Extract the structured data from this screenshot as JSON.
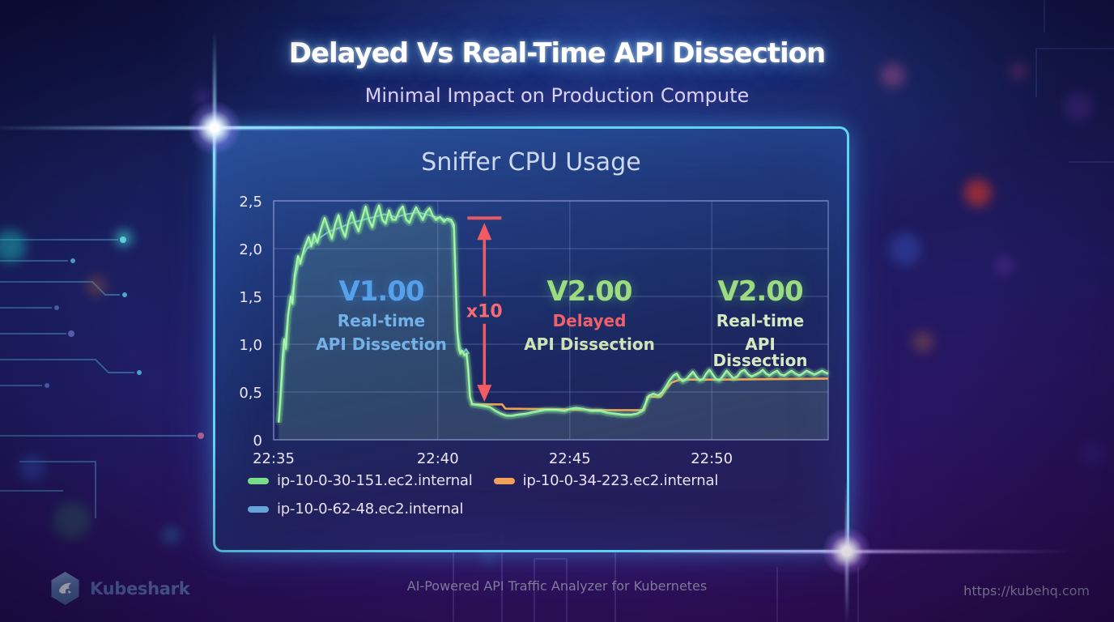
{
  "header": {
    "title": "Delayed Vs Real-Time API Dissection",
    "subtitle": "Minimal Impact on Production Compute"
  },
  "chart_data": {
    "type": "line",
    "title": "Sniffer CPU Usage",
    "ylim": [
      0,
      2.5
    ],
    "grid": true,
    "legend_position": "bottom-left",
    "y_ticks": [
      {
        "label": "0",
        "value": 0
      },
      {
        "label": "0,5",
        "value": 0.5
      },
      {
        "label": "1,0",
        "value": 1.0
      },
      {
        "label": "1,5",
        "value": 1.5
      },
      {
        "label": "2,0",
        "value": 2.0
      },
      {
        "label": "2,5",
        "value": 2.5
      }
    ],
    "x_ticks": [
      {
        "label": "22:35",
        "f": 0.0
      },
      {
        "label": "22:40",
        "f": 0.296
      },
      {
        "label": "22:45",
        "f": 0.534
      },
      {
        "label": "22:50",
        "f": 0.79
      }
    ],
    "series": [
      {
        "name": "ip-10-0-30-151.ec2.internal",
        "color": "#84e88e",
        "fill": "rgba(150,230,170,0.16)",
        "points": [
          [
            0.009,
            0.18
          ],
          [
            0.012,
            0.4
          ],
          [
            0.016,
            0.85
          ],
          [
            0.019,
            1.05
          ],
          [
            0.022,
            0.95
          ],
          [
            0.026,
            1.3
          ],
          [
            0.031,
            1.5
          ],
          [
            0.034,
            1.42
          ],
          [
            0.038,
            1.72
          ],
          [
            0.044,
            1.92
          ],
          [
            0.048,
            1.84
          ],
          [
            0.055,
            2.0
          ],
          [
            0.063,
            2.12
          ],
          [
            0.068,
            2.02
          ],
          [
            0.073,
            2.15
          ],
          [
            0.079,
            2.06
          ],
          [
            0.085,
            2.2
          ],
          [
            0.092,
            2.32
          ],
          [
            0.099,
            2.2
          ],
          [
            0.105,
            2.1
          ],
          [
            0.111,
            2.25
          ],
          [
            0.117,
            2.35
          ],
          [
            0.123,
            2.2
          ],
          [
            0.129,
            2.12
          ],
          [
            0.135,
            2.28
          ],
          [
            0.141,
            2.38
          ],
          [
            0.147,
            2.26
          ],
          [
            0.153,
            2.18
          ],
          [
            0.16,
            2.32
          ],
          [
            0.166,
            2.44
          ],
          [
            0.172,
            2.3
          ],
          [
            0.178,
            2.22
          ],
          [
            0.184,
            2.36
          ],
          [
            0.19,
            2.45
          ],
          [
            0.196,
            2.3
          ],
          [
            0.202,
            2.26
          ],
          [
            0.208,
            2.4
          ],
          [
            0.214,
            2.3
          ],
          [
            0.22,
            2.3
          ],
          [
            0.227,
            2.4
          ],
          [
            0.233,
            2.44
          ],
          [
            0.239,
            2.3
          ],
          [
            0.245,
            2.27
          ],
          [
            0.251,
            2.36
          ],
          [
            0.257,
            2.43
          ],
          [
            0.263,
            2.36
          ],
          [
            0.269,
            2.3
          ],
          [
            0.275,
            2.38
          ],
          [
            0.281,
            2.42
          ],
          [
            0.287,
            2.34
          ],
          [
            0.293,
            2.3
          ],
          [
            0.3,
            2.33
          ],
          [
            0.307,
            2.28
          ],
          [
            0.313,
            2.31
          ],
          [
            0.32,
            2.3
          ],
          [
            0.325,
            2.25
          ],
          [
            0.328,
            1.7
          ],
          [
            0.331,
            1.15
          ],
          [
            0.334,
            0.95
          ],
          [
            0.337,
            0.9
          ],
          [
            0.34,
            0.93
          ],
          [
            0.344,
            0.88
          ],
          [
            0.348,
            0.9
          ],
          [
            0.351,
            0.72
          ],
          [
            0.354,
            0.45
          ],
          [
            0.358,
            0.37
          ],
          [
            0.37,
            0.36
          ],
          [
            0.39,
            0.34
          ],
          [
            0.4,
            0.3
          ],
          [
            0.41,
            0.27
          ],
          [
            0.42,
            0.25
          ],
          [
            0.43,
            0.25
          ],
          [
            0.44,
            0.26
          ],
          [
            0.455,
            0.27
          ],
          [
            0.47,
            0.29
          ],
          [
            0.49,
            0.31
          ],
          [
            0.51,
            0.31
          ],
          [
            0.525,
            0.3
          ],
          [
            0.535,
            0.32
          ],
          [
            0.545,
            0.33
          ],
          [
            0.558,
            0.32
          ],
          [
            0.572,
            0.3
          ],
          [
            0.59,
            0.3
          ],
          [
            0.602,
            0.28
          ],
          [
            0.615,
            0.27
          ],
          [
            0.63,
            0.26
          ],
          [
            0.645,
            0.26
          ],
          [
            0.655,
            0.27
          ],
          [
            0.665,
            0.3
          ],
          [
            0.671,
            0.38
          ],
          [
            0.677,
            0.46
          ],
          [
            0.685,
            0.48
          ],
          [
            0.693,
            0.46
          ],
          [
            0.7,
            0.49
          ],
          [
            0.707,
            0.55
          ],
          [
            0.714,
            0.62
          ],
          [
            0.721,
            0.67
          ],
          [
            0.727,
            0.69
          ],
          [
            0.732,
            0.64
          ],
          [
            0.738,
            0.61
          ],
          [
            0.744,
            0.63
          ],
          [
            0.75,
            0.67
          ],
          [
            0.756,
            0.71
          ],
          [
            0.762,
            0.66
          ],
          [
            0.768,
            0.62
          ],
          [
            0.774,
            0.63
          ],
          [
            0.78,
            0.69
          ],
          [
            0.786,
            0.73
          ],
          [
            0.792,
            0.68
          ],
          [
            0.798,
            0.63
          ],
          [
            0.804,
            0.62
          ],
          [
            0.811,
            0.67
          ],
          [
            0.817,
            0.72
          ],
          [
            0.823,
            0.68
          ],
          [
            0.829,
            0.64
          ],
          [
            0.836,
            0.66
          ],
          [
            0.842,
            0.71
          ],
          [
            0.849,
            0.73
          ],
          [
            0.856,
            0.68
          ],
          [
            0.862,
            0.66
          ],
          [
            0.869,
            0.68
          ],
          [
            0.876,
            0.7
          ],
          [
            0.882,
            0.73
          ],
          [
            0.888,
            0.69
          ],
          [
            0.894,
            0.67
          ],
          [
            0.901,
            0.7
          ],
          [
            0.908,
            0.72
          ],
          [
            0.914,
            0.68
          ],
          [
            0.921,
            0.67
          ],
          [
            0.928,
            0.7
          ],
          [
            0.934,
            0.72
          ],
          [
            0.941,
            0.69
          ],
          [
            0.948,
            0.67
          ],
          [
            0.954,
            0.69
          ],
          [
            0.961,
            0.72
          ],
          [
            0.968,
            0.7
          ],
          [
            0.975,
            0.68
          ],
          [
            0.982,
            0.7
          ],
          [
            0.989,
            0.72
          ],
          [
            0.995,
            0.7
          ],
          [
            1.0,
            0.69
          ]
        ]
      },
      {
        "name": "ip-10-0-34-223.ec2.internal",
        "color": "#eda253",
        "points": [
          [
            0.355,
            0.37
          ],
          [
            0.412,
            0.37
          ],
          [
            0.418,
            0.325
          ],
          [
            0.5,
            0.32
          ],
          [
            0.6,
            0.31
          ],
          [
            0.668,
            0.31
          ],
          [
            0.674,
            0.45
          ],
          [
            0.698,
            0.45
          ],
          [
            0.706,
            0.52
          ],
          [
            0.718,
            0.6
          ],
          [
            0.733,
            0.63
          ],
          [
            0.8,
            0.63
          ],
          [
            1.0,
            0.64
          ]
        ]
      },
      {
        "name": "ip-10-0-62-48.ec2.internal",
        "color": "#79c2ec",
        "points": [
          [
            0.009,
            0.2
          ],
          [
            0.015,
            0.6
          ],
          [
            0.02,
            1.0
          ],
          [
            0.027,
            1.35
          ],
          [
            0.035,
            1.6
          ],
          [
            0.045,
            1.85
          ],
          [
            0.06,
            2.0
          ],
          [
            0.08,
            2.1
          ],
          [
            0.1,
            2.18
          ],
          [
            0.12,
            2.22
          ],
          [
            0.14,
            2.27
          ],
          [
            0.16,
            2.3
          ],
          [
            0.18,
            2.33
          ],
          [
            0.2,
            2.36
          ],
          [
            0.22,
            2.33
          ],
          [
            0.24,
            2.36
          ],
          [
            0.26,
            2.38
          ],
          [
            0.28,
            2.35
          ],
          [
            0.3,
            2.32
          ],
          [
            0.313,
            2.3
          ],
          [
            0.32,
            2.28
          ],
          [
            0.325,
            2.2
          ],
          [
            0.328,
            1.6
          ],
          [
            0.332,
            1.1
          ],
          [
            0.337,
            0.95
          ],
          [
            0.342,
            0.9
          ],
          [
            0.347,
            0.95
          ],
          [
            0.352,
            0.9
          ]
        ]
      }
    ],
    "annotations": {
      "v1": {
        "version": "V1.00",
        "line1": "Real-time",
        "line2": "API Dissection"
      },
      "delayed": {
        "version": "V2.00",
        "line1": "Delayed",
        "line2": "API Dissection"
      },
      "v2_realtime": {
        "version": "V2.00",
        "line1": "Real-time",
        "line2": "API Dissection"
      },
      "multiplier": {
        "label": "x10",
        "x_f": 0.38,
        "top_value": 2.32,
        "bottom_value": 0.38
      }
    },
    "legend": [
      {
        "label": "ip-10-0-30-151.ec2.internal",
        "color": "#7be08a"
      },
      {
        "label": "ip-10-0-34-223.ec2.internal",
        "color": "#f0a058"
      },
      {
        "label": "ip-10-0-62-48.ec2.internal",
        "color": "#6ab0e8"
      }
    ]
  },
  "footer": {
    "brand": "Kubeshark",
    "tagline": "AI-Powered API Traffic Analyzer for Kubernetes",
    "url": "https://kubehq.com"
  },
  "colors": {
    "panel_border": "#60d2f2",
    "green_series": "#84e88e",
    "orange_series": "#eda253",
    "blue_series": "#79c2ec",
    "red_accent": "#f25b63"
  }
}
